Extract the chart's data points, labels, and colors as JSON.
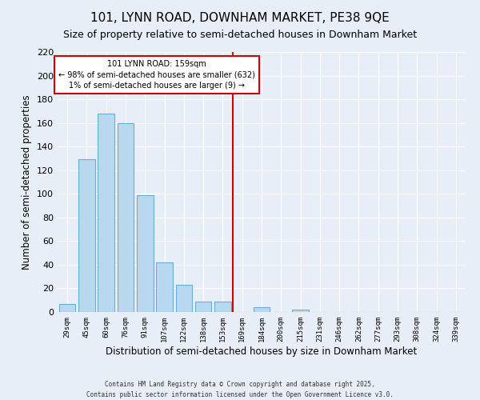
{
  "title": "101, LYNN ROAD, DOWNHAM MARKET, PE38 9QE",
  "subtitle": "Size of property relative to semi-detached houses in Downham Market",
  "xlabel": "Distribution of semi-detached houses by size in Downham Market",
  "ylabel": "Number of semi-detached properties",
  "footnote1": "Contains HM Land Registry data © Crown copyright and database right 2025.",
  "footnote2": "Contains public sector information licensed under the Open Government Licence v3.0.",
  "bar_labels": [
    "29sqm",
    "45sqm",
    "60sqm",
    "76sqm",
    "91sqm",
    "107sqm",
    "122sqm",
    "138sqm",
    "153sqm",
    "169sqm",
    "184sqm",
    "200sqm",
    "215sqm",
    "231sqm",
    "246sqm",
    "262sqm",
    "277sqm",
    "293sqm",
    "308sqm",
    "324sqm",
    "339sqm"
  ],
  "bar_values": [
    7,
    129,
    168,
    160,
    99,
    42,
    23,
    9,
    9,
    0,
    4,
    0,
    2,
    0,
    0,
    0,
    0,
    0,
    0,
    0,
    0
  ],
  "bar_color": "#b8d8f0",
  "bar_edge_color": "#6bacd0",
  "vline_x": 8.5,
  "vline_color": "#cc0000",
  "annotation_title": "101 LYNN ROAD: 159sqm",
  "annotation_line1": "← 98% of semi-detached houses are smaller (632)",
  "annotation_line2": "1% of semi-detached houses are larger (9) →",
  "annotation_box_color": "#ffffff",
  "annotation_box_edge": "#cc0000",
  "ylim": [
    0,
    220
  ],
  "yticks": [
    0,
    20,
    40,
    60,
    80,
    100,
    120,
    140,
    160,
    180,
    200,
    220
  ],
  "bg_color": "#e8eef8",
  "grid_color": "#ffffff",
  "title_fontsize": 11,
  "subtitle_fontsize": 9,
  "xlabel_fontsize": 8.5,
  "ylabel_fontsize": 8.5
}
